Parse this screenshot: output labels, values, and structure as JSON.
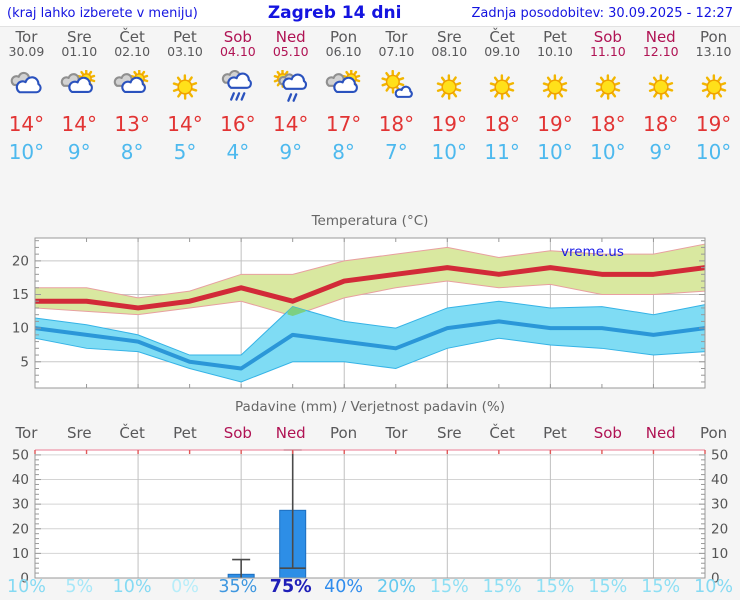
{
  "header": {
    "location_note": "(kraj lahko izberete v meniju)",
    "title": "Zagreb 14 dni",
    "updated": "Zadnja posodobitev: 30.09.2025 - 12:27"
  },
  "sections": {
    "temperature_title": "Temperatura (°C)",
    "precip_title": "Padavine (mm) / Verjetnost padavin (%)"
  },
  "watermark": "vreme.us",
  "days": [
    {
      "name": "Tor",
      "date": "30.09",
      "weekend": false,
      "icon": "cloudy",
      "tmax": "14°",
      "tmin": "10°",
      "prob": "10%",
      "prob_color": "#85daf3",
      "prob_bold": false
    },
    {
      "name": "Sre",
      "date": "01.10",
      "weekend": false,
      "icon": "partly-cloudy",
      "tmax": "14°",
      "tmin": "9°",
      "prob": "5%",
      "prob_color": "#a6e7f8",
      "prob_bold": false
    },
    {
      "name": "Čet",
      "date": "02.10",
      "weekend": false,
      "icon": "partly-cloudy",
      "tmax": "13°",
      "tmin": "8°",
      "prob": "10%",
      "prob_color": "#85daf3",
      "prob_bold": false
    },
    {
      "name": "Pet",
      "date": "03.10",
      "weekend": false,
      "icon": "sunny",
      "tmax": "14°",
      "tmin": "5°",
      "prob": "0%",
      "prob_color": "#b7edf9",
      "prob_bold": false
    },
    {
      "name": "Sob",
      "date": "04.10",
      "weekend": true,
      "icon": "rain",
      "tmax": "16°",
      "tmin": "4°",
      "prob": "35%",
      "prob_color": "#3e97e0",
      "prob_bold": false
    },
    {
      "name": "Ned",
      "date": "05.10",
      "weekend": true,
      "icon": "sun-rain",
      "tmax": "14°",
      "tmin": "9°",
      "prob": "75%",
      "prob_color": "#1f1fb8",
      "prob_bold": true
    },
    {
      "name": "Pon",
      "date": "06.10",
      "weekend": false,
      "icon": "partly-cloudy",
      "tmax": "17°",
      "tmin": "8°",
      "prob": "40%",
      "prob_color": "#2f8ced",
      "prob_bold": false
    },
    {
      "name": "Tor",
      "date": "07.10",
      "weekend": false,
      "icon": "mostly-sunny",
      "tmax": "18°",
      "tmin": "7°",
      "prob": "20%",
      "prob_color": "#63c9ef",
      "prob_bold": false
    },
    {
      "name": "Sre",
      "date": "08.10",
      "weekend": false,
      "icon": "sunny",
      "tmax": "19°",
      "tmin": "10°",
      "prob": "15%",
      "prob_color": "#8edff4",
      "prob_bold": false
    },
    {
      "name": "Čet",
      "date": "09.10",
      "weekend": false,
      "icon": "sunny",
      "tmax": "18°",
      "tmin": "11°",
      "prob": "15%",
      "prob_color": "#8edff4",
      "prob_bold": false
    },
    {
      "name": "Pet",
      "date": "10.10",
      "weekend": false,
      "icon": "sunny",
      "tmax": "19°",
      "tmin": "10°",
      "prob": "15%",
      "prob_color": "#8edff4",
      "prob_bold": false
    },
    {
      "name": "Sob",
      "date": "11.10",
      "weekend": true,
      "icon": "sunny",
      "tmax": "18°",
      "tmin": "10°",
      "prob": "15%",
      "prob_color": "#8edff4",
      "prob_bold": false
    },
    {
      "name": "Ned",
      "date": "12.10",
      "weekend": true,
      "icon": "sunny",
      "tmax": "18°",
      "tmin": "9°",
      "prob": "15%",
      "prob_color": "#8edff4",
      "prob_bold": false
    },
    {
      "name": "Pon",
      "date": "13.10",
      "weekend": false,
      "icon": "sunny",
      "tmax": "19°",
      "tmin": "10°",
      "prob": "10%",
      "prob_color": "#85daf3",
      "prob_bold": false
    }
  ],
  "chart_data": [
    {
      "type": "line",
      "title": "Temperatura (°C)",
      "categories": [
        "Tor 30.09",
        "Sre 01.10",
        "Čet 02.10",
        "Pet 03.10",
        "Sob 04.10",
        "Ned 05.10",
        "Pon 06.10",
        "Tor 07.10",
        "Sre 08.10",
        "Čet 09.10",
        "Pet 10.10",
        "Sob 11.10",
        "Ned 12.10",
        "Pon 13.10"
      ],
      "ylim": [
        1.1,
        23.4
      ],
      "yticks": [
        5,
        10,
        15,
        20
      ],
      "grid": "horizontal at yticks, vertical every 2 days",
      "legend": "none",
      "watermark": "vreme.us",
      "series": [
        {
          "name": "max-temp",
          "color": "#d22a38",
          "values": [
            14,
            14,
            13,
            14,
            16,
            14,
            17,
            18,
            19,
            18,
            19,
            18,
            18,
            19
          ]
        },
        {
          "name": "max-band-upper",
          "color": "#d9e8a0",
          "values": [
            16,
            16,
            14.5,
            15.5,
            18,
            18,
            20,
            21,
            22,
            20.5,
            21.5,
            21,
            21,
            22.5
          ]
        },
        {
          "name": "max-band-lower",
          "color": "#d9e8a0",
          "values": [
            13,
            12.5,
            12,
            13,
            14,
            11.8,
            14.5,
            16,
            17,
            16,
            16.5,
            15,
            15,
            15.5
          ]
        },
        {
          "name": "min-temp",
          "color": "#2b97d8",
          "values": [
            10,
            9,
            8,
            5,
            4,
            9,
            8,
            7,
            10,
            11,
            10,
            10,
            9,
            10
          ]
        },
        {
          "name": "min-band-upper",
          "color": "#7fdcf4",
          "values": [
            11.5,
            10.5,
            9,
            6,
            6,
            13.2,
            11,
            10,
            13,
            14,
            13,
            13.2,
            12,
            13.5
          ]
        },
        {
          "name": "min-band-lower",
          "color": "#7fdcf4",
          "values": [
            8.5,
            7,
            6.5,
            4,
            2,
            5,
            5,
            4,
            7,
            8.5,
            7.5,
            7,
            6,
            6.5
          ]
        }
      ]
    },
    {
      "type": "bar",
      "title": "Padavine (mm) / Verjetnost padavin (%)",
      "categories": [
        "Tor",
        "Sre",
        "Čet",
        "Pet",
        "Sob",
        "Ned",
        "Pon",
        "Tor",
        "Sre",
        "Čet",
        "Pet",
        "Sob",
        "Ned",
        "Pon"
      ],
      "values": [
        0,
        0,
        0,
        0,
        1.5,
        27.5,
        0,
        0,
        0,
        0,
        0,
        0,
        0,
        0
      ],
      "range_bars": [
        {
          "index": 4,
          "low": 0,
          "high": 7.5
        },
        {
          "index": 5,
          "low": 4,
          "high": 52
        }
      ],
      "probabilities_pct": [
        10,
        5,
        10,
        0,
        35,
        75,
        40,
        20,
        15,
        15,
        15,
        15,
        15,
        10
      ],
      "ylim": [
        0,
        52
      ],
      "yticks": [
        0,
        10,
        20,
        30,
        40,
        50
      ],
      "ylabels": "left and right"
    }
  ],
  "colors": {
    "header_blue": "#1414e0",
    "weekday_gray": "#58585a",
    "weekend_red": "#b01354",
    "tmax_red": "#e23434",
    "tmin_blue": "#4db9ee",
    "line_max": "#d22a38",
    "line_min": "#2b97d8",
    "band_max_green": "#d9e8a0",
    "band_max_edge": "#e8a0a0",
    "band_min_cyan": "#7fdcf4",
    "band_min_edge": "#35b3e6",
    "band_overlap_green": "#7cd083",
    "bar_blue": "#2d8ee6",
    "whisker_gray": "#4a4a4a",
    "grid_gray": "#c8c8c8",
    "axis_gray": "#999999",
    "axis_text": "#555555",
    "precip_top_border": "#f0a6b6",
    "precip_top_ticks": "#e05858",
    "watermark_blue": "#1a1ae6",
    "panel_bg": "#f5f5f5"
  }
}
